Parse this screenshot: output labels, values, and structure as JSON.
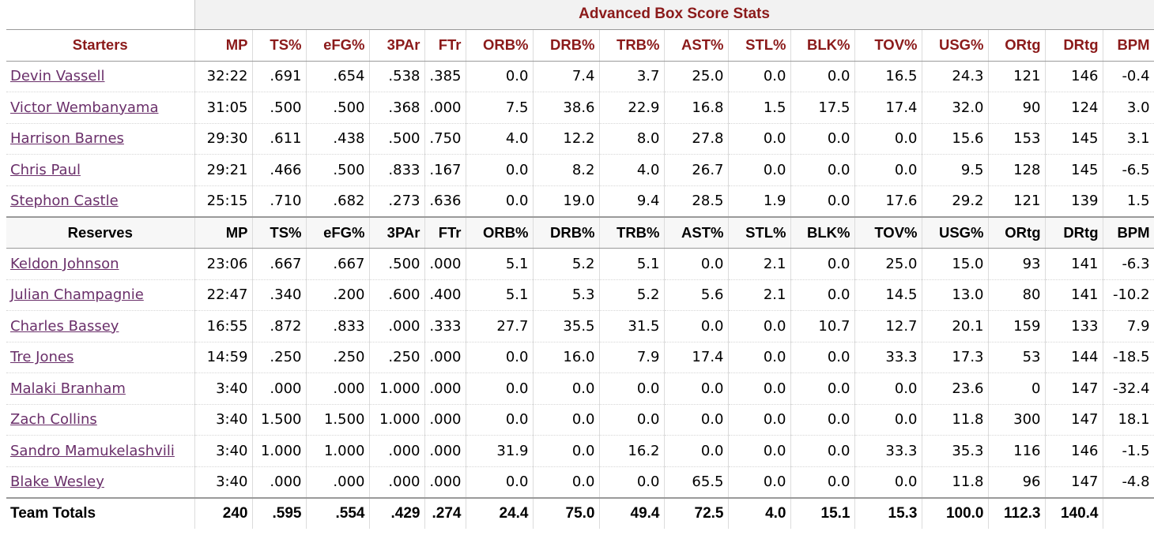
{
  "table_title": "Advanced Box Score Stats",
  "columns": [
    "MP",
    "TS%",
    "eFG%",
    "3PAr",
    "FTr",
    "ORB%",
    "DRB%",
    "TRB%",
    "AST%",
    "STL%",
    "BLK%",
    "TOV%",
    "USG%",
    "ORtg",
    "DRtg",
    "BPM"
  ],
  "starters": {
    "label": "Starters",
    "rows": [
      {
        "name": "Devin Vassell",
        "vals": [
          "32:22",
          ".691",
          ".654",
          ".538",
          ".385",
          "0.0",
          "7.4",
          "3.7",
          "25.0",
          "0.0",
          "0.0",
          "16.5",
          "24.3",
          "121",
          "146",
          "-0.4"
        ]
      },
      {
        "name": "Victor Wembanyama",
        "vals": [
          "31:05",
          ".500",
          ".500",
          ".368",
          ".000",
          "7.5",
          "38.6",
          "22.9",
          "16.8",
          "1.5",
          "17.5",
          "17.4",
          "32.0",
          "90",
          "124",
          "3.0"
        ]
      },
      {
        "name": "Harrison Barnes",
        "vals": [
          "29:30",
          ".611",
          ".438",
          ".500",
          ".750",
          "4.0",
          "12.2",
          "8.0",
          "27.8",
          "0.0",
          "0.0",
          "0.0",
          "15.6",
          "153",
          "145",
          "3.1"
        ]
      },
      {
        "name": "Chris Paul",
        "vals": [
          "29:21",
          ".466",
          ".500",
          ".833",
          ".167",
          "0.0",
          "8.2",
          "4.0",
          "26.7",
          "0.0",
          "0.0",
          "0.0",
          "9.5",
          "128",
          "145",
          "-6.5"
        ]
      },
      {
        "name": "Stephon Castle",
        "vals": [
          "25:15",
          ".710",
          ".682",
          ".273",
          ".636",
          "0.0",
          "19.0",
          "9.4",
          "28.5",
          "1.9",
          "0.0",
          "17.6",
          "29.2",
          "121",
          "139",
          "1.5"
        ]
      }
    ]
  },
  "reserves": {
    "label": "Reserves",
    "rows": [
      {
        "name": "Keldon Johnson",
        "vals": [
          "23:06",
          ".667",
          ".667",
          ".500",
          ".000",
          "5.1",
          "5.2",
          "5.1",
          "0.0",
          "2.1",
          "0.0",
          "25.0",
          "15.0",
          "93",
          "141",
          "-6.3"
        ]
      },
      {
        "name": "Julian Champagnie",
        "vals": [
          "22:47",
          ".340",
          ".200",
          ".600",
          ".400",
          "5.1",
          "5.3",
          "5.2",
          "5.6",
          "2.1",
          "0.0",
          "14.5",
          "13.0",
          "80",
          "141",
          "-10.2"
        ]
      },
      {
        "name": "Charles Bassey",
        "vals": [
          "16:55",
          ".872",
          ".833",
          ".000",
          ".333",
          "27.7",
          "35.5",
          "31.5",
          "0.0",
          "0.0",
          "10.7",
          "12.7",
          "20.1",
          "159",
          "133",
          "7.9"
        ]
      },
      {
        "name": "Tre Jones",
        "vals": [
          "14:59",
          ".250",
          ".250",
          ".250",
          ".000",
          "0.0",
          "16.0",
          "7.9",
          "17.4",
          "0.0",
          "0.0",
          "33.3",
          "17.3",
          "53",
          "144",
          "-18.5"
        ]
      },
      {
        "name": "Malaki Branham",
        "vals": [
          "3:40",
          ".000",
          ".000",
          "1.000",
          ".000",
          "0.0",
          "0.0",
          "0.0",
          "0.0",
          "0.0",
          "0.0",
          "0.0",
          "23.6",
          "0",
          "147",
          "-32.4"
        ]
      },
      {
        "name": "Zach Collins",
        "vals": [
          "3:40",
          "1.500",
          "1.500",
          "1.000",
          ".000",
          "0.0",
          "0.0",
          "0.0",
          "0.0",
          "0.0",
          "0.0",
          "0.0",
          "11.8",
          "300",
          "147",
          "18.1"
        ]
      },
      {
        "name": "Sandro Mamukelashvili",
        "vals": [
          "3:40",
          "1.000",
          "1.000",
          ".000",
          ".000",
          "31.9",
          "0.0",
          "16.2",
          "0.0",
          "0.0",
          "0.0",
          "33.3",
          "35.3",
          "116",
          "146",
          "-1.5"
        ]
      },
      {
        "name": "Blake Wesley",
        "vals": [
          "3:40",
          ".000",
          ".000",
          ".000",
          ".000",
          "0.0",
          "0.0",
          "0.0",
          "65.5",
          "0.0",
          "0.0",
          "0.0",
          "11.8",
          "96",
          "147",
          "-4.8"
        ]
      }
    ]
  },
  "totals": {
    "label": "Team Totals",
    "vals": [
      "240",
      ".595",
      ".554",
      ".429",
      ".274",
      "24.4",
      "75.0",
      "49.4",
      "72.5",
      "4.0",
      "15.1",
      "15.3",
      "100.0",
      "112.3",
      "140.4",
      ""
    ]
  }
}
